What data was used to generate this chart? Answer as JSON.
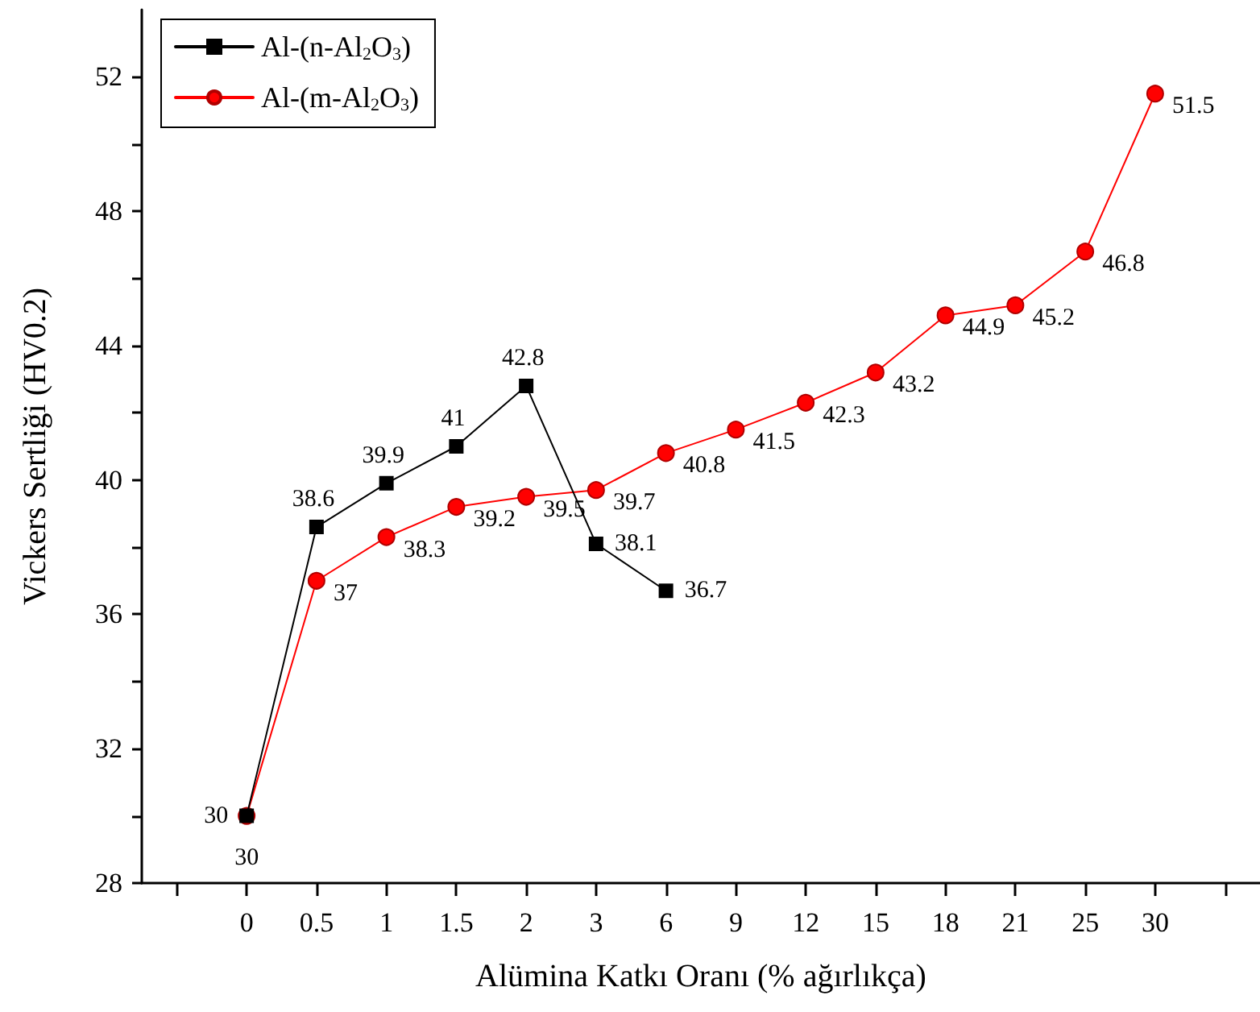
{
  "chart_data": {
    "type": "line",
    "xlabel": "Alümina Katkı Oranı (% ağırlıkça)",
    "ylabel": "Vickers Sertliği (HV0.2)",
    "categories": [
      null,
      "0",
      "0.5",
      "1",
      "1.5",
      "2",
      "3",
      "6",
      "9",
      "12",
      "15",
      "18",
      "21",
      "25",
      "30",
      null
    ],
    "series": [
      {
        "name": "Al-(n-Al$_{2}$O$_{3}$)",
        "color": "#000000",
        "marker": "square",
        "values": [
          null,
          30,
          38.6,
          39.9,
          41,
          42.8,
          38.1,
          36.7,
          null,
          null,
          null,
          null,
          null,
          null,
          null,
          null
        ]
      },
      {
        "name": "Al-(m-Al$_{2}$O$_{3}$)",
        "color": "#ff0000",
        "marker": "circle",
        "values": [
          null,
          30,
          37,
          38.3,
          39.2,
          39.5,
          39.7,
          40.8,
          41.5,
          42.3,
          43.2,
          44.9,
          45.2,
          46.8,
          51.5,
          null
        ]
      }
    ],
    "ylim": [
      28,
      54
    ],
    "yticks": [
      28,
      {
        "value": 30,
        "label": null
      },
      32,
      {
        "value": 34,
        "label": null
      },
      36,
      {
        "value": 38,
        "label": null
      },
      40,
      {
        "value": 42,
        "label": null
      },
      44,
      {
        "value": 46,
        "label": null
      },
      48,
      {
        "value": 50,
        "label": null
      },
      52
    ],
    "data_labels": true,
    "legend": "top left",
    "grid": false,
    "line_style": "solid"
  }
}
